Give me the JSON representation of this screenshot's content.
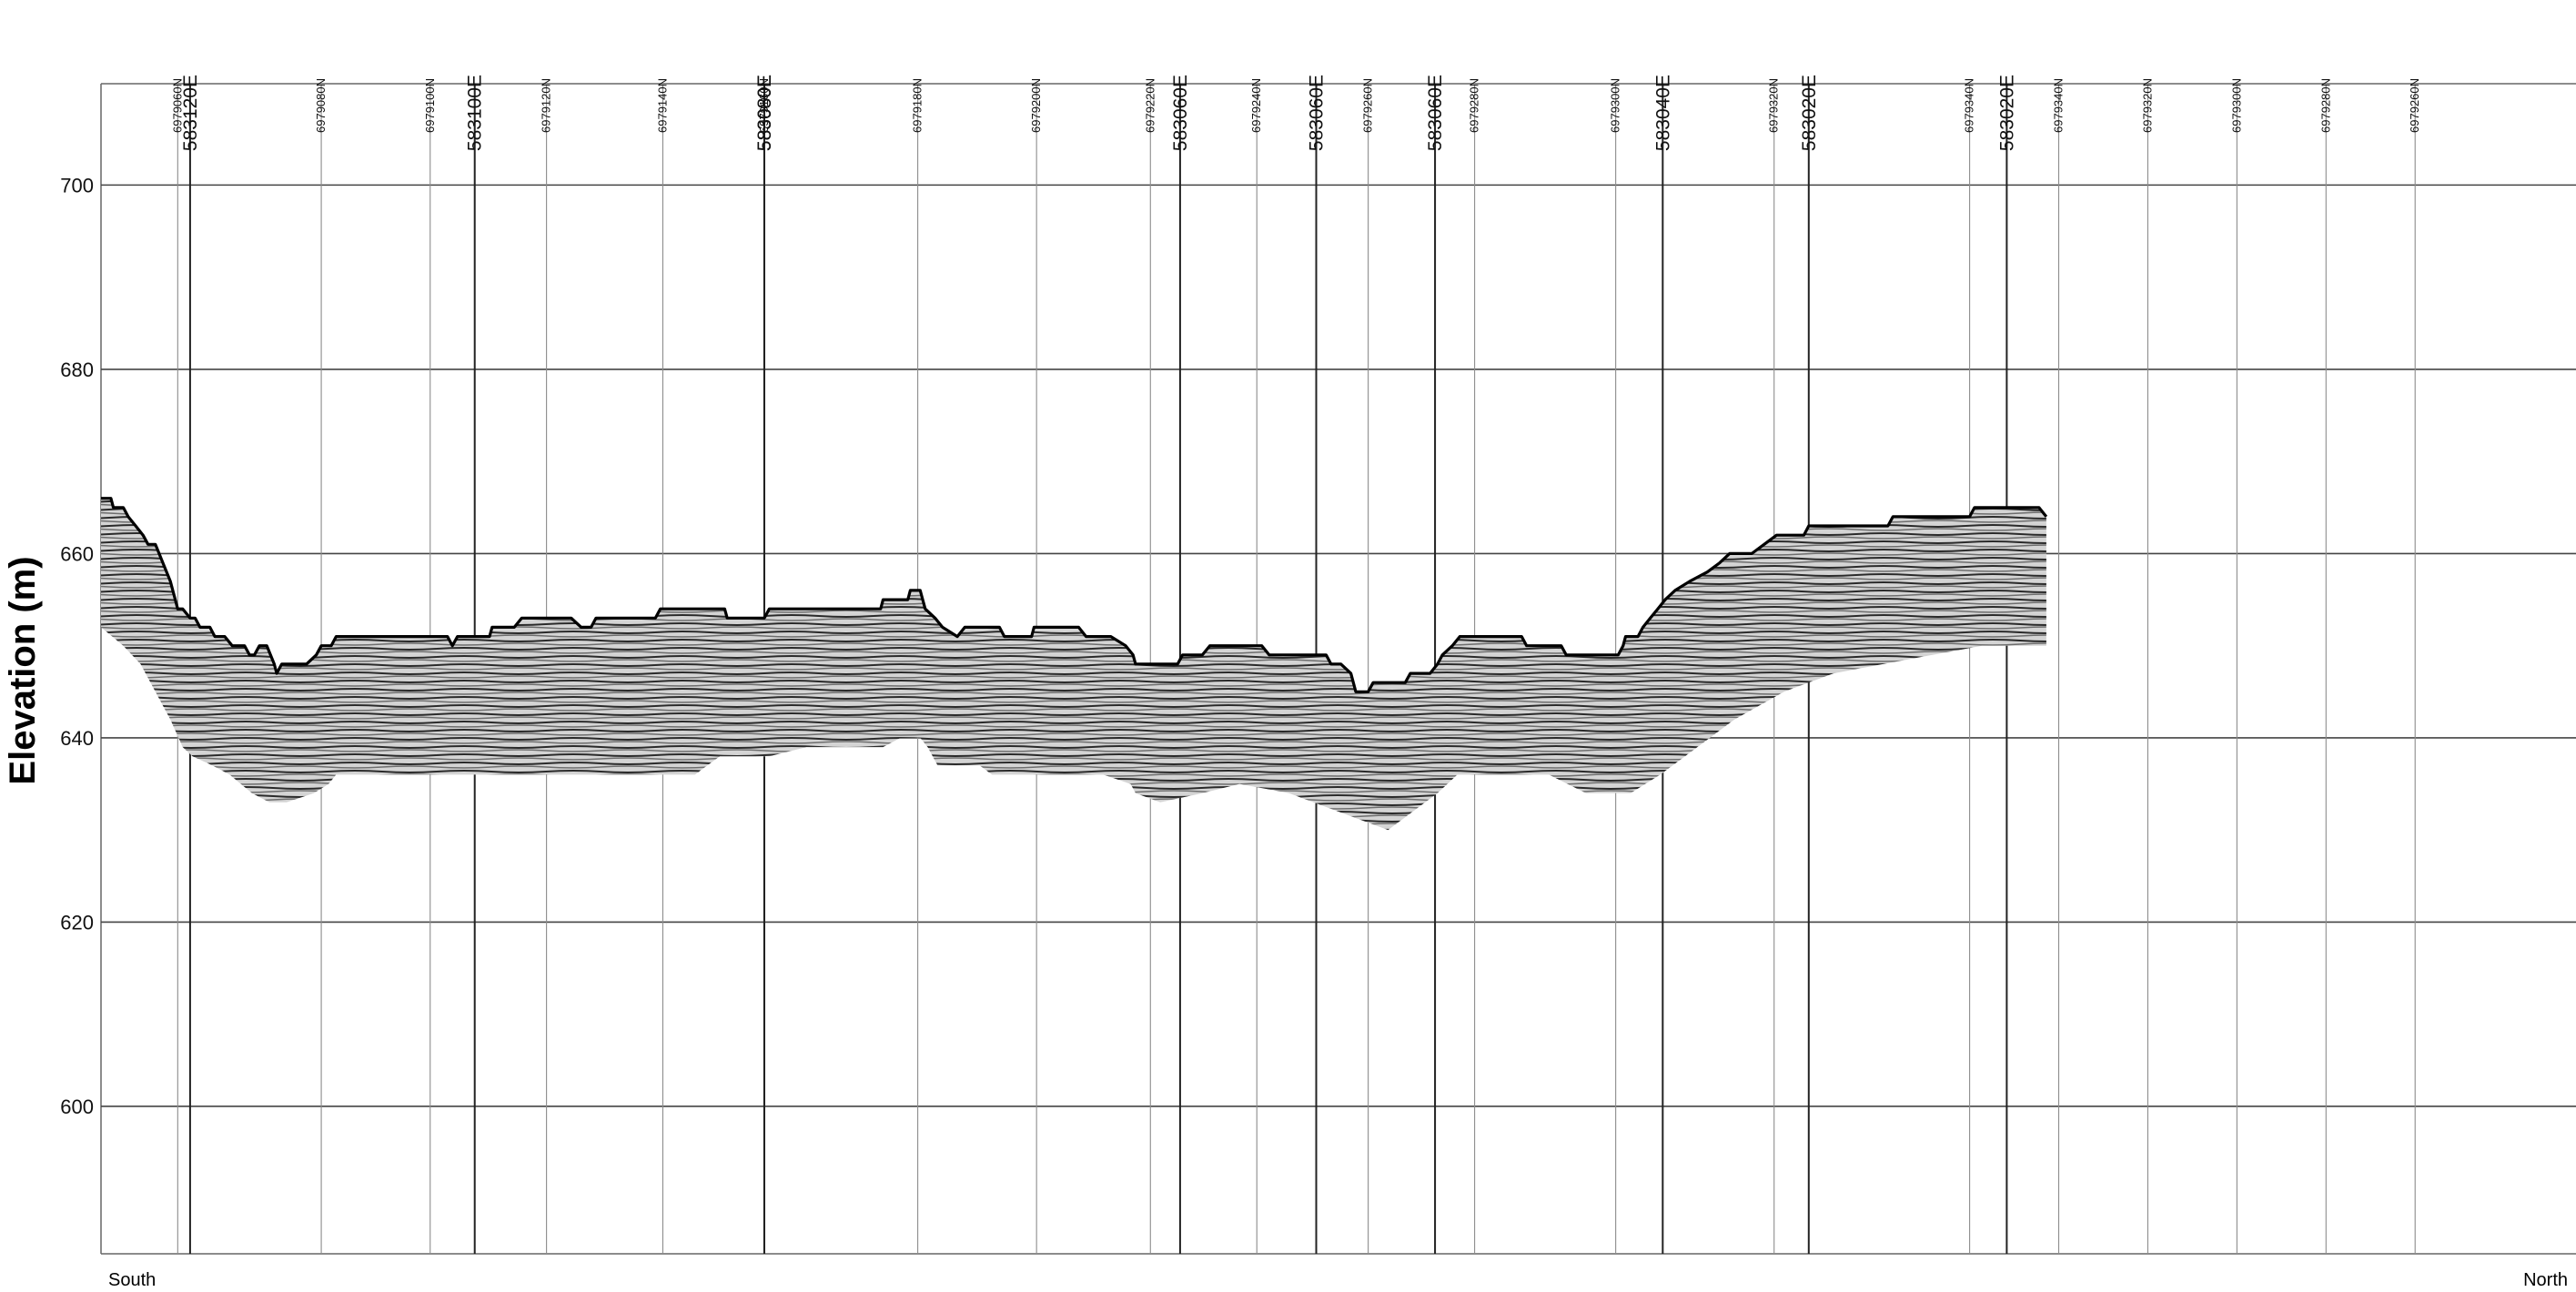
{
  "chart_data": {
    "type": "line",
    "title": "",
    "xlabel": "",
    "ylabel": "Elevation (m)",
    "ylim": [
      584,
      711
    ],
    "xlim": [
      0,
      1000
    ],
    "y_ticks": [
      600,
      620,
      640,
      660,
      680,
      700
    ],
    "grid": true,
    "direction_labels": {
      "left": "South",
      "right": "North"
    },
    "north_markers": [
      {
        "x": 31,
        "label": "6979060N"
      },
      {
        "x": 89,
        "label": "6979080N"
      },
      {
        "x": 133,
        "label": "6979100N"
      },
      {
        "x": 180,
        "label": "6979120N"
      },
      {
        "x": 227,
        "label": "6979140N"
      },
      {
        "x": 268,
        "label": "6979160N"
      },
      {
        "x": 330,
        "label": "6979180N"
      },
      {
        "x": 378,
        "label": "6979200N"
      },
      {
        "x": 424,
        "label": "6979220N"
      },
      {
        "x": 467,
        "label": "6979240N"
      },
      {
        "x": 512,
        "label": "6979260N"
      },
      {
        "x": 555,
        "label": "6979280N"
      },
      {
        "x": 612,
        "label": "6979300N"
      },
      {
        "x": 676,
        "label": "6979320N"
      },
      {
        "x": 755,
        "label": "6979340N"
      },
      {
        "x": 791,
        "label": "6979340N"
      },
      {
        "x": 827,
        "label": "6979320N"
      },
      {
        "x": 863,
        "label": "6979300N"
      },
      {
        "x": 899,
        "label": "6979280N"
      },
      {
        "x": 935,
        "label": "6979260N"
      }
    ],
    "east_markers": [
      {
        "x": 36,
        "label": "583120E"
      },
      {
        "x": 151,
        "label": "583100E"
      },
      {
        "x": 268,
        "label": "583080E"
      },
      {
        "x": 268,
        "label": "583080E"
      },
      {
        "x": 436,
        "label": "583060E"
      },
      {
        "x": 491,
        "label": "583060E"
      },
      {
        "x": 539,
        "label": "583060E"
      },
      {
        "x": 631,
        "label": "583040E"
      },
      {
        "x": 690,
        "label": "583020E"
      },
      {
        "x": 770,
        "label": "583020E"
      }
    ],
    "series": [
      {
        "role": "ground-surface",
        "points": [
          [
            0,
            666
          ],
          [
            4,
            666
          ],
          [
            5,
            665
          ],
          [
            9,
            665
          ],
          [
            11,
            664
          ],
          [
            14,
            663
          ],
          [
            17,
            662
          ],
          [
            19,
            661
          ],
          [
            22,
            661
          ],
          [
            25,
            659
          ],
          [
            28,
            657
          ],
          [
            31,
            654
          ],
          [
            33,
            654
          ],
          [
            36,
            653
          ],
          [
            38,
            653
          ],
          [
            40,
            652
          ],
          [
            44,
            652
          ],
          [
            46,
            651
          ],
          [
            50,
            651
          ],
          [
            53,
            650
          ],
          [
            58,
            650
          ],
          [
            60,
            649
          ],
          [
            62,
            649
          ],
          [
            64,
            650
          ],
          [
            67,
            650
          ],
          [
            70,
            648
          ],
          [
            71,
            647
          ],
          [
            73,
            648
          ],
          [
            83,
            648
          ],
          [
            87,
            649
          ],
          [
            89,
            650
          ],
          [
            93,
            650
          ],
          [
            95,
            651
          ],
          [
            140,
            651
          ],
          [
            142,
            650
          ],
          [
            144,
            651
          ],
          [
            157,
            651
          ],
          [
            158,
            652
          ],
          [
            167,
            652
          ],
          [
            170,
            653
          ],
          [
            190,
            653
          ],
          [
            194,
            652
          ],
          [
            198,
            652
          ],
          [
            200,
            653
          ],
          [
            224,
            653
          ],
          [
            226,
            654
          ],
          [
            252,
            654
          ],
          [
            253,
            653
          ],
          [
            268,
            653
          ],
          [
            270,
            654
          ],
          [
            315,
            654
          ],
          [
            316,
            655
          ],
          [
            326,
            655
          ],
          [
            327,
            656
          ],
          [
            331,
            656
          ],
          [
            333,
            654
          ],
          [
            337,
            653
          ],
          [
            340,
            652
          ],
          [
            346,
            651
          ],
          [
            349,
            652
          ],
          [
            363,
            652
          ],
          [
            365,
            651
          ],
          [
            376,
            651
          ],
          [
            377,
            652
          ],
          [
            395,
            652
          ],
          [
            398,
            651
          ],
          [
            408,
            651
          ],
          [
            414,
            650
          ],
          [
            417,
            649
          ],
          [
            418,
            648
          ],
          [
            435,
            648
          ],
          [
            437,
            649
          ],
          [
            445,
            649
          ],
          [
            448,
            650
          ],
          [
            469,
            650
          ],
          [
            472,
            649
          ],
          [
            495,
            649
          ],
          [
            497,
            648
          ],
          [
            501,
            648
          ],
          [
            505,
            647
          ],
          [
            507,
            645
          ],
          [
            512,
            645
          ],
          [
            514,
            646
          ],
          [
            527,
            646
          ],
          [
            529,
            647
          ],
          [
            537,
            647
          ],
          [
            540,
            648
          ],
          [
            542,
            649
          ],
          [
            546,
            650
          ],
          [
            549,
            651
          ],
          [
            574,
            651
          ],
          [
            576,
            650
          ],
          [
            590,
            650
          ],
          [
            592,
            649
          ],
          [
            613,
            649
          ],
          [
            615,
            650
          ],
          [
            616,
            651
          ],
          [
            621,
            651
          ],
          [
            623,
            652
          ],
          [
            626,
            653
          ],
          [
            629,
            654
          ],
          [
            632,
            655
          ],
          [
            636,
            656
          ],
          [
            642,
            657
          ],
          [
            649,
            658
          ],
          [
            654,
            659
          ],
          [
            658,
            660
          ],
          [
            667,
            660
          ],
          [
            672,
            661
          ],
          [
            677,
            662
          ],
          [
            688,
            662
          ],
          [
            690,
            663
          ],
          [
            722,
            663
          ],
          [
            724,
            664
          ],
          [
            755,
            664
          ],
          [
            757,
            665
          ],
          [
            783,
            665
          ],
          [
            786,
            664
          ]
        ]
      },
      {
        "role": "radar-section-base",
        "points": [
          [
            0,
            652
          ],
          [
            9,
            650
          ],
          [
            16,
            648
          ],
          [
            22,
            645
          ],
          [
            28,
            642
          ],
          [
            33,
            639
          ],
          [
            37,
            638
          ],
          [
            45,
            637
          ],
          [
            52,
            636
          ],
          [
            61,
            634
          ],
          [
            68,
            633
          ],
          [
            75,
            633
          ],
          [
            86,
            634
          ],
          [
            92,
            635
          ],
          [
            95,
            636
          ],
          [
            240,
            636
          ],
          [
            245,
            637
          ],
          [
            250,
            638
          ],
          [
            270,
            638
          ],
          [
            285,
            639
          ],
          [
            316,
            639
          ],
          [
            323,
            640
          ],
          [
            331,
            640
          ],
          [
            334,
            639
          ],
          [
            338,
            637
          ],
          [
            355,
            637
          ],
          [
            360,
            636
          ],
          [
            390,
            636
          ],
          [
            405,
            636
          ],
          [
            416,
            635
          ],
          [
            418,
            634
          ],
          [
            428,
            633
          ],
          [
            445,
            634
          ],
          [
            460,
            635
          ],
          [
            480,
            634
          ],
          [
            500,
            632
          ],
          [
            510,
            631
          ],
          [
            520,
            630
          ],
          [
            530,
            632
          ],
          [
            540,
            634
          ],
          [
            548,
            636
          ],
          [
            570,
            636
          ],
          [
            585,
            636
          ],
          [
            600,
            634
          ],
          [
            618,
            634
          ],
          [
            630,
            636
          ],
          [
            640,
            638
          ],
          [
            660,
            642
          ],
          [
            680,
            645
          ],
          [
            700,
            647
          ],
          [
            720,
            648
          ],
          [
            740,
            649
          ],
          [
            760,
            650
          ],
          [
            786,
            650
          ]
        ]
      }
    ]
  }
}
